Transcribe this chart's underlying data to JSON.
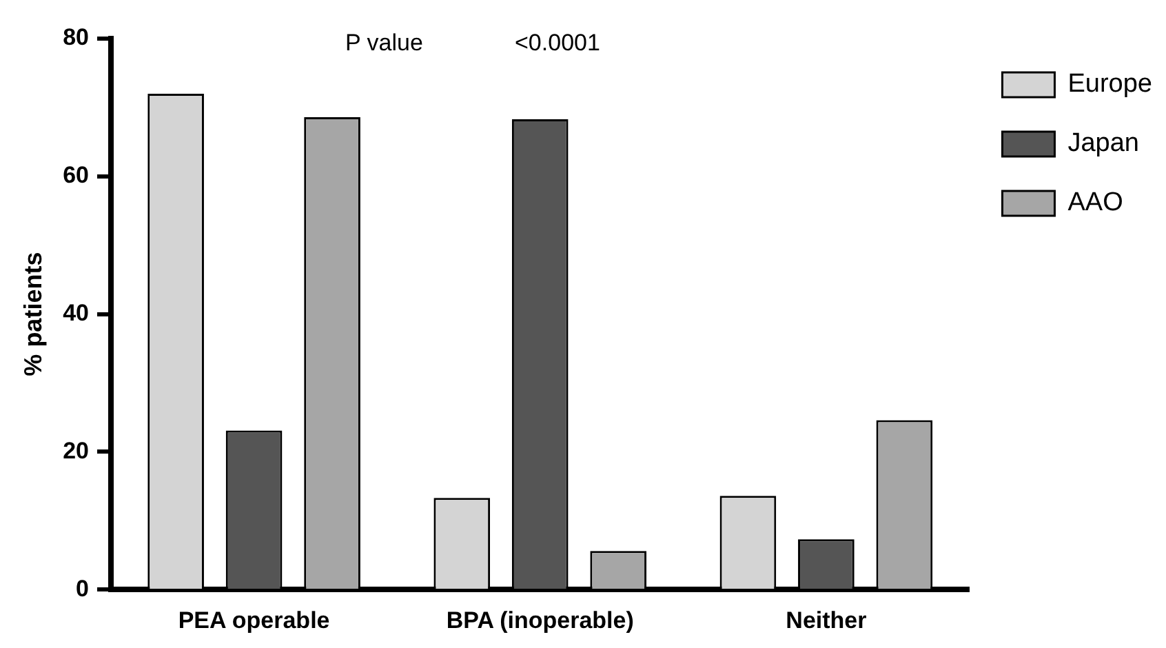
{
  "chart_data": {
    "type": "bar",
    "ylabel": "% patients",
    "categories": [
      "PEA operable",
      "BPA (inoperable)",
      "Neither"
    ],
    "series": [
      {
        "name": "Europe",
        "color": "#d4d4d4",
        "values": [
          72,
          13.3,
          13.6
        ]
      },
      {
        "name": "Japan",
        "color": "#555555",
        "values": [
          23.1,
          68.3,
          7.3
        ]
      },
      {
        "name": "AAO",
        "color": "#a6a6a6",
        "values": [
          68.6,
          5.6,
          24.6
        ]
      }
    ],
    "ylim": [
      0,
      80
    ],
    "yticks": [
      0,
      20,
      40,
      60,
      80
    ],
    "grid": false,
    "legend": "top right",
    "annotations": [
      "P value",
      "<0.0001"
    ]
  }
}
